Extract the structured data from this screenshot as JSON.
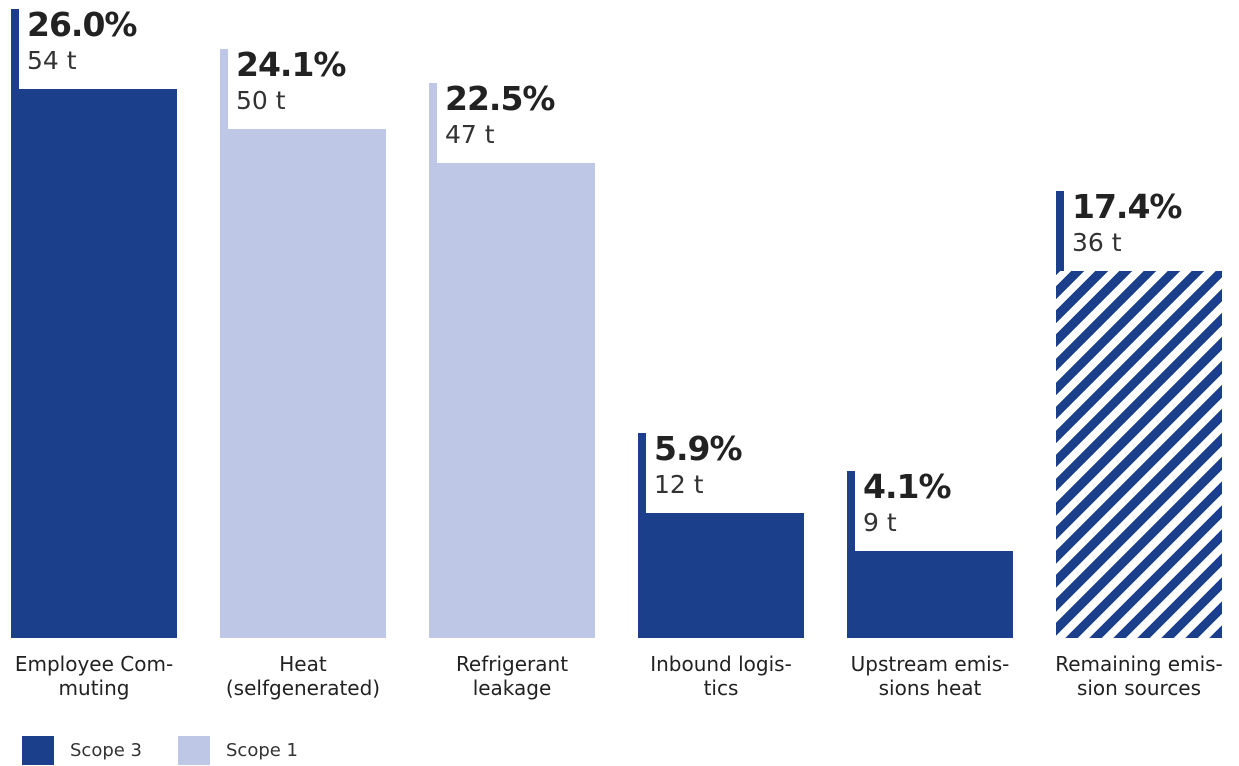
{
  "colors": {
    "scope3": "#1b3f8b",
    "scope1": "#bec8e6",
    "stripe_bg": "#ffffff"
  },
  "chart_data": {
    "type": "bar",
    "title": "",
    "xlabel": "",
    "ylabel": "",
    "ylim": [
      0,
      26.0
    ],
    "grid": false,
    "legend_position": "bottom-left",
    "bars": [
      {
        "label_lines": [
          "Employee Com-",
          "muting"
        ],
        "percent": 26.0,
        "percent_label": "26.0%",
        "tons_label": "54 t",
        "scope": "scope3",
        "pattern": "solid"
      },
      {
        "label_lines": [
          "Heat (selfgenerated)"
        ],
        "percent": 24.1,
        "percent_label": "24.1%",
        "tons_label": "50 t",
        "scope": "scope1",
        "pattern": "solid"
      },
      {
        "label_lines": [
          "Refrigerant",
          "leakage"
        ],
        "percent": 22.5,
        "percent_label": "22.5%",
        "tons_label": "47 t",
        "scope": "scope1",
        "pattern": "solid"
      },
      {
        "label_lines": [
          "Inbound logis-",
          "tics"
        ],
        "percent": 5.9,
        "percent_label": "5.9%",
        "tons_label": "12 t",
        "scope": "scope3",
        "pattern": "solid"
      },
      {
        "label_lines": [
          "Upstream emis-",
          "sions heat"
        ],
        "percent": 4.1,
        "percent_label": "4.1%",
        "tons_label": "9 t",
        "scope": "scope3",
        "pattern": "solid"
      },
      {
        "label_lines": [
          "Remaining emis-",
          "sion sources"
        ],
        "percent": 17.4,
        "percent_label": "17.4%",
        "tons_label": "36 t",
        "scope": "scope3",
        "pattern": "striped"
      }
    ],
    "legend": [
      {
        "label": "Scope 3",
        "scope": "scope3"
      },
      {
        "label": "Scope 1",
        "scope": "scope1"
      }
    ]
  }
}
